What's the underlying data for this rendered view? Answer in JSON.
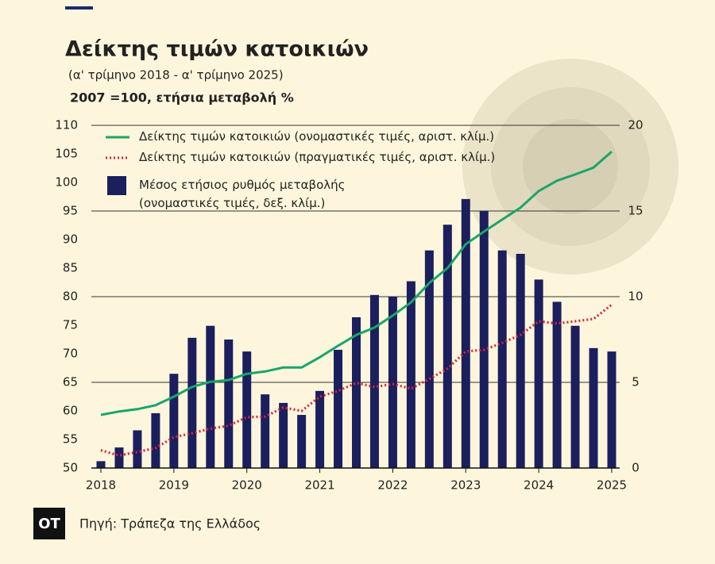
{
  "chart_data": {
    "type": "bar-line",
    "title": "Δείκτης τιμών κατοικιών",
    "subtitle": "(α' τρίμηνο 2018 - α' τρίμηνο 2025)",
    "axis_note": "2007 =100, ετήσια μεταβολή %",
    "source": "Πηγή: Τράπεζα της Ελλάδος",
    "logo": "OT",
    "categories": [
      "2018",
      null,
      null,
      null,
      "2019",
      null,
      null,
      null,
      "2020",
      null,
      null,
      null,
      "2021",
      null,
      null,
      null,
      "2022",
      null,
      null,
      null,
      "2023",
      null,
      null,
      null,
      "2024",
      null,
      null,
      null,
      "2025"
    ],
    "series": [
      {
        "name": "Δείκτης τιμών κατοικιών (ονομαστικές τιμές, αριστ. κλίμ.)",
        "kind": "line",
        "color": "#1aa56a",
        "axis": "y",
        "values": [
          59.3,
          59.9,
          60.3,
          61.0,
          62.5,
          64.2,
          65.1,
          65.4,
          66.5,
          66.9,
          67.6,
          67.6,
          69.4,
          71.4,
          73.3,
          74.6,
          76.7,
          79.0,
          82.4,
          85.0,
          89.2,
          91.4,
          93.5,
          95.6,
          98.5,
          100.3,
          101.4,
          102.6,
          105.4
        ]
      },
      {
        "name": "Δείκτης τιμών κατοικιών (πραγματικές τιμές, αριστ. κλίμ.)",
        "kind": "dotted-line",
        "color": "#d7263d",
        "axis": "y",
        "values": [
          53.1,
          52.2,
          52.8,
          53.5,
          55.4,
          56.1,
          56.9,
          57.4,
          58.9,
          59.0,
          60.6,
          60.0,
          62.5,
          63.5,
          64.9,
          64.2,
          64.7,
          63.9,
          65.6,
          67.4,
          70.4,
          70.7,
          71.9,
          73.3,
          75.7,
          75.3,
          75.7,
          76.1,
          78.6
        ]
      },
      {
        "name": "Μέσος ετήσιος ρυθμός μεταβολής\n(ονομαστικές τιμές, δεξ. κλίμ.)",
        "kind": "bar",
        "color": "#1b1f5e",
        "axis": "y2",
        "values": [
          0.4,
          1.2,
          2.2,
          3.2,
          5.5,
          7.6,
          8.3,
          7.5,
          6.8,
          4.3,
          3.8,
          3.1,
          4.5,
          6.9,
          8.8,
          10.1,
          10.0,
          10.9,
          12.7,
          14.2,
          15.7,
          15.0,
          12.7,
          12.5,
          11.0,
          9.7,
          8.3,
          7.0,
          6.8
        ]
      }
    ],
    "ylim": [
      50,
      110
    ],
    "yticks": [
      50,
      55,
      60,
      65,
      70,
      75,
      80,
      85,
      90,
      95,
      100,
      105,
      110
    ],
    "y2lim": [
      0,
      20
    ],
    "y2ticks": [
      0,
      5,
      10,
      15,
      20
    ],
    "grid": true
  }
}
